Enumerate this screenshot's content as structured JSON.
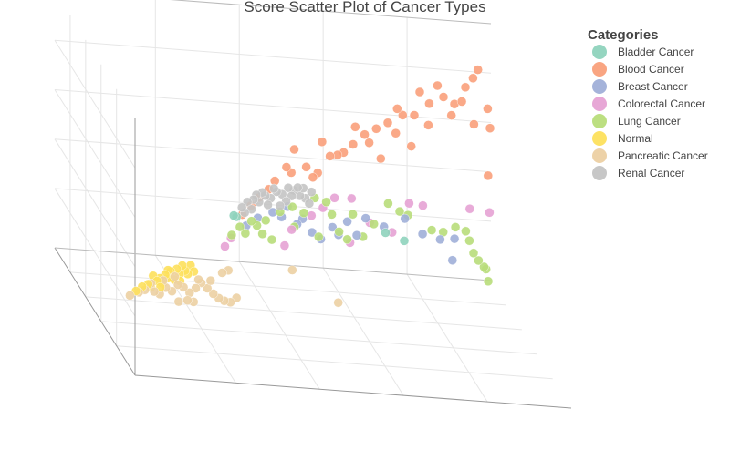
{
  "chart_data": {
    "type": "scatter",
    "dimensions": 3,
    "title": "Score Scatter Plot of Cancer Types",
    "grid": true,
    "legend_placement": "top-right",
    "legend_title": "Categories",
    "series": [
      {
        "name": "Bladder Cancer",
        "color": "#8fd3bd",
        "values": [
          [
            0.9,
            3.0,
            2.2
          ],
          [
            1.0,
            2.9,
            2.3
          ],
          [
            5.7,
            2.0,
            3.7
          ],
          [
            6.2,
            1.8,
            3.4
          ]
        ]
      },
      {
        "name": "Blood Cancer",
        "color": "#f9a07b",
        "values": [
          [
            1.3,
            2.7,
            3.0
          ],
          [
            1.6,
            3.1,
            3.2
          ],
          [
            1.9,
            3.4,
            3.5
          ],
          [
            2.4,
            4.2,
            3.7
          ],
          [
            2.8,
            4.8,
            4.0
          ],
          [
            3.0,
            4.4,
            4.3
          ],
          [
            3.5,
            4.6,
            4.6
          ],
          [
            3.9,
            4.2,
            4.9
          ],
          [
            4.3,
            5.0,
            5.1
          ],
          [
            4.6,
            4.9,
            5.5
          ],
          [
            5.1,
            5.4,
            5.7
          ],
          [
            5.5,
            5.8,
            6.0
          ],
          [
            5.9,
            6.0,
            6.3
          ],
          [
            6.3,
            6.2,
            6.6
          ],
          [
            6.8,
            6.5,
            6.9
          ],
          [
            7.2,
            6.4,
            7.2
          ],
          [
            7.7,
            6.9,
            7.5
          ],
          [
            8.2,
            7.1,
            7.9
          ],
          [
            8.6,
            6.6,
            8.3
          ],
          [
            9.0,
            7.3,
            8.7
          ],
          [
            9.3,
            7.6,
            9.1
          ],
          [
            9.5,
            7.9,
            9.4
          ],
          [
            9.7,
            6.2,
            8.9
          ],
          [
            9.2,
            5.6,
            8.4
          ],
          [
            9.9,
            4.9,
            9.6
          ],
          [
            3.2,
            5.3,
            4.9
          ],
          [
            4.1,
            5.6,
            5.3
          ],
          [
            5.2,
            6.2,
            5.9
          ],
          [
            6.6,
            6.9,
            6.7
          ],
          [
            7.4,
            7.5,
            7.4
          ],
          [
            8.0,
            7.7,
            7.8
          ],
          [
            8.8,
            6.8,
            8.2
          ],
          [
            6.0,
            4.6,
            6.1
          ],
          [
            7.0,
            5.1,
            6.6
          ],
          [
            4.8,
            5.0,
            5.6
          ],
          [
            3.7,
            4.1,
            4.6
          ],
          [
            2.2,
            3.8,
            3.6
          ],
          [
            5.6,
            5.5,
            5.8
          ],
          [
            6.5,
            5.8,
            6.4
          ],
          [
            7.6,
            6.0,
            7.1
          ],
          [
            8.4,
            6.3,
            7.7
          ],
          [
            9.6,
            3.1,
            8.3
          ]
        ]
      },
      {
        "name": "Breast Cancer",
        "color": "#a0afd8",
        "values": [
          [
            1.4,
            2.2,
            2.9
          ],
          [
            1.8,
            2.5,
            3.2
          ],
          [
            2.3,
            2.7,
            3.5
          ],
          [
            2.8,
            2.9,
            3.8
          ],
          [
            3.3,
            2.2,
            4.1
          ],
          [
            3.6,
            1.5,
            4.2
          ],
          [
            3.9,
            1.1,
            4.4
          ],
          [
            4.3,
            1.6,
            4.7
          ],
          [
            4.8,
            1.8,
            5.0
          ],
          [
            5.4,
            1.9,
            5.3
          ],
          [
            6.0,
            1.4,
            5.6
          ],
          [
            6.7,
            1.7,
            6.0
          ],
          [
            7.3,
            0.8,
            6.4
          ],
          [
            7.9,
            0.4,
            6.8
          ],
          [
            8.3,
            -0.7,
            7.0
          ],
          [
            8.4,
            0.3,
            7.2
          ],
          [
            2.6,
            2.4,
            3.7
          ],
          [
            3.1,
            2.0,
            3.9
          ],
          [
            4.5,
            1.2,
            4.8
          ],
          [
            5.1,
            1.1,
            5.1
          ]
        ]
      },
      {
        "name": "Colorectal Cancer",
        "color": "#e6a2d4",
        "values": [
          [
            0.6,
            1.5,
            2.0
          ],
          [
            0.8,
            1.9,
            2.1
          ],
          [
            2.6,
            1.2,
            3.2
          ],
          [
            3.6,
            2.3,
            4.3
          ],
          [
            4.4,
            3.0,
            4.9
          ],
          [
            5.0,
            2.8,
            5.4
          ],
          [
            5.6,
            1.5,
            5.7
          ],
          [
            6.9,
            2.3,
            6.4
          ],
          [
            7.4,
            2.0,
            6.9
          ],
          [
            9.0,
            1.5,
            8.0
          ],
          [
            9.7,
            1.1,
            8.6
          ],
          [
            4.9,
            0.7,
            5.1
          ],
          [
            6.3,
            1.0,
            5.9
          ],
          [
            2.9,
            1.8,
            3.7
          ],
          [
            4.0,
            2.6,
            4.6
          ]
        ]
      },
      {
        "name": "Lung Cancer",
        "color": "#b8dd7a",
        "values": [
          [
            0.8,
            2.1,
            2.0
          ],
          [
            1.1,
            2.4,
            2.3
          ],
          [
            1.5,
            2.6,
            2.6
          ],
          [
            1.7,
            2.3,
            2.8
          ],
          [
            1.9,
            1.8,
            3.0
          ],
          [
            2.2,
            1.5,
            3.1
          ],
          [
            2.5,
            2.8,
            3.4
          ],
          [
            2.9,
            3.0,
            3.6
          ],
          [
            3.3,
            2.6,
            3.9
          ],
          [
            3.7,
            3.2,
            4.3
          ],
          [
            4.1,
            2.9,
            4.6
          ],
          [
            4.5,
            1.4,
            4.7
          ],
          [
            4.8,
            0.9,
            5.0
          ],
          [
            5.3,
            1.0,
            5.2
          ],
          [
            5.7,
            1.5,
            5.6
          ],
          [
            6.2,
            2.4,
            6.0
          ],
          [
            6.9,
            1.6,
            6.6
          ],
          [
            7.7,
            0.7,
            7.1
          ],
          [
            8.1,
            0.5,
            7.4
          ],
          [
            8.5,
            0.7,
            7.6
          ],
          [
            8.9,
            0.3,
            8.1
          ],
          [
            9.1,
            -0.4,
            8.6
          ],
          [
            9.3,
            -1.2,
            9.0
          ],
          [
            9.5,
            -1.7,
            9.3
          ],
          [
            9.7,
            -2.1,
            9.5
          ],
          [
            9.8,
            -2.3,
            9.7
          ],
          [
            9.9,
            -3.0,
            9.9
          ],
          [
            3.0,
            1.9,
            3.8
          ],
          [
            3.8,
            1.3,
            4.2
          ],
          [
            2.0,
            2.5,
            3.0
          ],
          [
            1.3,
            2.0,
            2.5
          ],
          [
            4.3,
            2.2,
            4.8
          ],
          [
            5.0,
            2.1,
            5.2
          ],
          [
            6.6,
            1.9,
            6.3
          ]
        ]
      },
      {
        "name": "Normal",
        "color": "#fde05c",
        "values": [
          [
            -2.4,
            -0.2,
            0.1
          ],
          [
            -2.2,
            0.0,
            0.2
          ],
          [
            -2.0,
            0.1,
            0.3
          ],
          [
            -1.9,
            -0.1,
            0.4
          ],
          [
            -1.7,
            0.2,
            0.5
          ],
          [
            -1.6,
            0.3,
            0.6
          ],
          [
            -1.5,
            0.0,
            0.7
          ],
          [
            -1.4,
            0.4,
            0.8
          ],
          [
            -1.3,
            0.2,
            0.9
          ],
          [
            -1.2,
            0.5,
            1.0
          ],
          [
            -1.1,
            0.1,
            1.0
          ],
          [
            -1.0,
            0.6,
            1.1
          ],
          [
            -0.9,
            0.3,
            1.2
          ],
          [
            -0.8,
            0.7,
            1.3
          ],
          [
            -0.7,
            0.4,
            1.4
          ],
          [
            -0.6,
            0.2,
            1.5
          ],
          [
            -0.5,
            0.6,
            1.6
          ],
          [
            -1.8,
            0.4,
            0.6
          ],
          [
            -1.3,
            0.6,
            0.9
          ],
          [
            -0.9,
            0.0,
            1.1
          ],
          [
            -1.6,
            -0.1,
            0.5
          ],
          [
            -0.4,
            0.3,
            1.6
          ]
        ]
      },
      {
        "name": "Pancreatic Cancer",
        "color": "#ecd0a3",
        "values": [
          [
            -2.6,
            -0.4,
            0.0
          ],
          [
            -2.3,
            -0.3,
            0.2
          ],
          [
            -2.1,
            -0.2,
            0.3
          ],
          [
            -1.8,
            -0.3,
            0.4
          ],
          [
            -1.6,
            -0.5,
            0.6
          ],
          [
            -1.4,
            -0.2,
            0.7
          ],
          [
            -1.2,
            -0.4,
            0.8
          ],
          [
            -1.0,
            -0.1,
            0.9
          ],
          [
            -0.8,
            -0.3,
            1.1
          ],
          [
            -0.6,
            -0.6,
            1.2
          ],
          [
            -0.4,
            -0.4,
            1.3
          ],
          [
            -0.2,
            -0.2,
            1.5
          ],
          [
            0.0,
            -0.5,
            1.6
          ],
          [
            0.2,
            -0.8,
            1.7
          ],
          [
            0.4,
            -1.1,
            1.9
          ],
          [
            0.6,
            -1.3,
            2.1
          ],
          [
            0.8,
            -1.4,
            2.2
          ],
          [
            1.0,
            -1.2,
            2.3
          ],
          [
            0.5,
            0.2,
            1.9
          ],
          [
            0.7,
            0.3,
            2.0
          ],
          [
            -1.0,
            -0.9,
            0.8
          ],
          [
            -0.7,
            -0.9,
            1.0
          ],
          [
            -0.5,
            -1.0,
            1.1
          ],
          [
            2.9,
            -0.2,
            3.6
          ],
          [
            4.4,
            -2.0,
            4.3
          ],
          [
            -1.9,
            0.1,
            0.4
          ],
          [
            -1.5,
            0.2,
            0.6
          ],
          [
            -1.1,
            0.3,
            0.9
          ],
          [
            -0.3,
            0.0,
            1.4
          ],
          [
            0.1,
            -0.1,
            1.6
          ]
        ]
      },
      {
        "name": "Renal Cancer",
        "color": "#c4c4c4",
        "values": [
          [
            1.2,
            3.3,
            2.5
          ],
          [
            1.4,
            3.5,
            2.7
          ],
          [
            1.6,
            3.6,
            2.8
          ],
          [
            1.8,
            3.4,
            3.0
          ],
          [
            2.0,
            3.7,
            3.1
          ],
          [
            2.2,
            3.5,
            3.3
          ],
          [
            2.4,
            3.8,
            3.4
          ],
          [
            2.6,
            3.6,
            3.6
          ],
          [
            2.8,
            3.9,
            3.7
          ],
          [
            3.0,
            3.7,
            3.9
          ],
          [
            3.2,
            3.4,
            4.0
          ],
          [
            3.4,
            3.2,
            4.2
          ],
          [
            3.6,
            3.5,
            4.3
          ],
          [
            1.5,
            3.2,
            2.6
          ],
          [
            1.9,
            3.9,
            3.0
          ],
          [
            2.3,
            4.0,
            3.3
          ],
          [
            2.7,
            3.3,
            3.5
          ],
          [
            3.1,
            3.9,
            3.8
          ],
          [
            3.5,
            3.0,
            4.1
          ],
          [
            1.7,
            3.8,
            2.9
          ],
          [
            2.1,
            3.2,
            3.2
          ],
          [
            2.5,
            3.1,
            3.4
          ],
          [
            2.9,
            3.5,
            3.7
          ],
          [
            3.3,
            3.8,
            4.0
          ],
          [
            1.3,
            3.0,
            2.6
          ]
        ]
      }
    ]
  }
}
